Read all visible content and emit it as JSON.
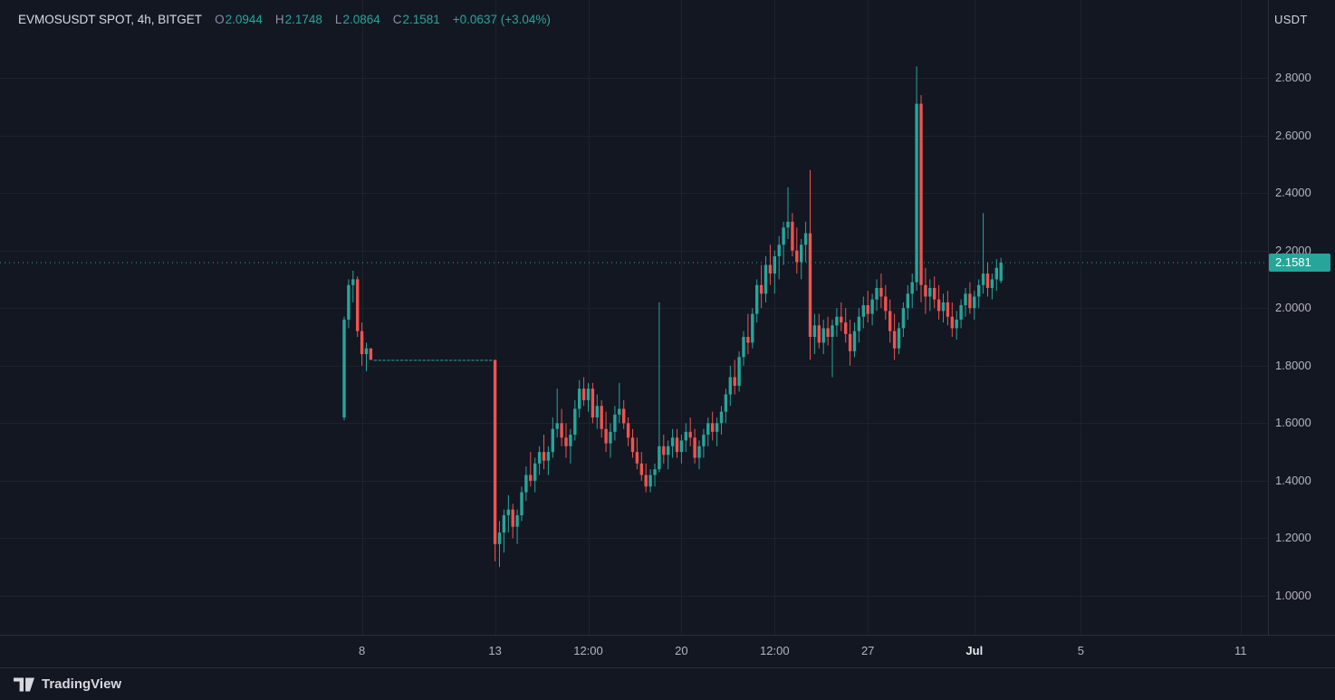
{
  "colors": {
    "background": "#131722",
    "grid": "#1e222d",
    "up": "#26a69a",
    "down": "#ef5350",
    "text_primary": "#d1d4dc",
    "text_secondary": "#b2b5be",
    "text_muted": "#8b8fa0",
    "axis_border": "#2a2e39",
    "badge_bg": "#26a69a",
    "badge_text": "#ffffff"
  },
  "legend": {
    "symbol_title": "EVMOSUSDT SPOT, 4h, BITGET",
    "ohlc": [
      {
        "label": "O",
        "value": "2.0944"
      },
      {
        "label": "H",
        "value": "2.1748"
      },
      {
        "label": "L",
        "value": "2.0864"
      },
      {
        "label": "C",
        "value": "2.1581"
      }
    ],
    "change": "+0.0637 (+3.04%)"
  },
  "price_axis": {
    "unit": "USDT"
  },
  "footer": {
    "brand": "TradingView"
  },
  "chart_data": {
    "type": "candlestick",
    "title": "EVMOSUSDT SPOT, 4h, BITGET",
    "symbol": "EVMOSUSDT",
    "market": "SPOT",
    "interval": "4h",
    "exchange": "BITGET",
    "unit": "USDT",
    "legend_ohlc": {
      "open": 2.0944,
      "high": 2.1748,
      "low": 2.0864,
      "close": 2.1581,
      "change_abs": 0.0637,
      "change_pct": 3.04
    },
    "ylim": [
      0.93,
      2.93
    ],
    "grid": true,
    "y_ticks": [
      {
        "value": 2.8,
        "label": "2.8000"
      },
      {
        "value": 2.6,
        "label": "2.6000"
      },
      {
        "value": 2.4,
        "label": "2.4000"
      },
      {
        "value": 2.2,
        "label": "2.2000"
      },
      {
        "value": 2.0,
        "label": "2.0000"
      },
      {
        "value": 1.8,
        "label": "1.8000"
      },
      {
        "value": 1.6,
        "label": "1.6000"
      },
      {
        "value": 1.4,
        "label": "1.4000"
      },
      {
        "value": 1.2,
        "label": "1.2000"
      },
      {
        "value": 1.0,
        "label": "1.0000"
      }
    ],
    "x_labels": [
      {
        "index": 4,
        "text": "8"
      },
      {
        "index": 34,
        "text": "13"
      },
      {
        "index": 55,
        "text": "12:00"
      },
      {
        "index": 76,
        "text": "20"
      },
      {
        "index": 97,
        "text": "12:00"
      },
      {
        "index": 118,
        "text": "27"
      },
      {
        "index": 142,
        "text": "Jul",
        "strong": true
      },
      {
        "index": 166,
        "text": "5"
      },
      {
        "index": 202,
        "text": "11"
      }
    ],
    "last_price": {
      "value": 2.1581,
      "label": "2.1581"
    },
    "flat_halt_period": {
      "from_index": 7,
      "to_index": 33,
      "price": 1.82
    },
    "candles_ohlc": [
      [
        1.62,
        1.97,
        1.61,
        1.96
      ],
      [
        1.96,
        2.1,
        1.93,
        2.08
      ],
      [
        2.08,
        2.13,
        2.02,
        2.1
      ],
      [
        2.1,
        2.11,
        1.9,
        1.92
      ],
      [
        1.92,
        1.95,
        1.8,
        1.84
      ],
      [
        1.84,
        1.88,
        1.78,
        1.86
      ],
      [
        1.86,
        1.86,
        1.82,
        1.82
      ],
      [
        1.82,
        1.82,
        1.82,
        1.82
      ],
      [
        1.82,
        1.82,
        1.82,
        1.82
      ],
      [
        1.82,
        1.82,
        1.82,
        1.82
      ],
      [
        1.82,
        1.82,
        1.82,
        1.82
      ],
      [
        1.82,
        1.82,
        1.82,
        1.82
      ],
      [
        1.82,
        1.82,
        1.82,
        1.82
      ],
      [
        1.82,
        1.82,
        1.82,
        1.82
      ],
      [
        1.82,
        1.82,
        1.82,
        1.82
      ],
      [
        1.82,
        1.82,
        1.82,
        1.82
      ],
      [
        1.82,
        1.82,
        1.82,
        1.82
      ],
      [
        1.82,
        1.82,
        1.82,
        1.82
      ],
      [
        1.82,
        1.82,
        1.82,
        1.82
      ],
      [
        1.82,
        1.82,
        1.82,
        1.82
      ],
      [
        1.82,
        1.82,
        1.82,
        1.82
      ],
      [
        1.82,
        1.82,
        1.82,
        1.82
      ],
      [
        1.82,
        1.82,
        1.82,
        1.82
      ],
      [
        1.82,
        1.82,
        1.82,
        1.82
      ],
      [
        1.82,
        1.82,
        1.82,
        1.82
      ],
      [
        1.82,
        1.82,
        1.82,
        1.82
      ],
      [
        1.82,
        1.82,
        1.82,
        1.82
      ],
      [
        1.82,
        1.82,
        1.82,
        1.82
      ],
      [
        1.82,
        1.82,
        1.82,
        1.82
      ],
      [
        1.82,
        1.82,
        1.82,
        1.82
      ],
      [
        1.82,
        1.82,
        1.82,
        1.82
      ],
      [
        1.82,
        1.82,
        1.82,
        1.82
      ],
      [
        1.82,
        1.82,
        1.82,
        1.82
      ],
      [
        1.82,
        1.82,
        1.82,
        1.82
      ],
      [
        1.82,
        1.82,
        1.12,
        1.18
      ],
      [
        1.18,
        1.26,
        1.1,
        1.22
      ],
      [
        1.22,
        1.3,
        1.15,
        1.28
      ],
      [
        1.28,
        1.35,
        1.22,
        1.3
      ],
      [
        1.3,
        1.32,
        1.2,
        1.24
      ],
      [
        1.24,
        1.3,
        1.18,
        1.28
      ],
      [
        1.28,
        1.38,
        1.26,
        1.36
      ],
      [
        1.36,
        1.45,
        1.33,
        1.42
      ],
      [
        1.42,
        1.5,
        1.38,
        1.4
      ],
      [
        1.4,
        1.48,
        1.36,
        1.46
      ],
      [
        1.46,
        1.52,
        1.42,
        1.5
      ],
      [
        1.5,
        1.56,
        1.44,
        1.47
      ],
      [
        1.47,
        1.52,
        1.42,
        1.5
      ],
      [
        1.5,
        1.62,
        1.48,
        1.58
      ],
      [
        1.58,
        1.72,
        1.55,
        1.6
      ],
      [
        1.6,
        1.65,
        1.52,
        1.55
      ],
      [
        1.55,
        1.6,
        1.48,
        1.52
      ],
      [
        1.52,
        1.58,
        1.46,
        1.56
      ],
      [
        1.56,
        1.68,
        1.54,
        1.65
      ],
      [
        1.65,
        1.75,
        1.62,
        1.72
      ],
      [
        1.72,
        1.76,
        1.66,
        1.68
      ],
      [
        1.68,
        1.74,
        1.64,
        1.72
      ],
      [
        1.72,
        1.74,
        1.6,
        1.62
      ],
      [
        1.62,
        1.7,
        1.58,
        1.66
      ],
      [
        1.66,
        1.68,
        1.55,
        1.58
      ],
      [
        1.58,
        1.64,
        1.5,
        1.53
      ],
      [
        1.53,
        1.6,
        1.48,
        1.57
      ],
      [
        1.57,
        1.66,
        1.54,
        1.63
      ],
      [
        1.63,
        1.74,
        1.6,
        1.65
      ],
      [
        1.65,
        1.68,
        1.58,
        1.6
      ],
      [
        1.6,
        1.62,
        1.52,
        1.55
      ],
      [
        1.55,
        1.58,
        1.48,
        1.5
      ],
      [
        1.5,
        1.55,
        1.44,
        1.46
      ],
      [
        1.46,
        1.5,
        1.4,
        1.42
      ],
      [
        1.42,
        1.46,
        1.36,
        1.38
      ],
      [
        1.38,
        1.44,
        1.36,
        1.42
      ],
      [
        1.42,
        1.46,
        1.38,
        1.44
      ],
      [
        1.44,
        2.02,
        1.43,
        1.52
      ],
      [
        1.52,
        1.56,
        1.46,
        1.49
      ],
      [
        1.49,
        1.54,
        1.44,
        1.52
      ],
      [
        1.52,
        1.58,
        1.48,
        1.55
      ],
      [
        1.55,
        1.58,
        1.48,
        1.5
      ],
      [
        1.5,
        1.56,
        1.46,
        1.54
      ],
      [
        1.54,
        1.6,
        1.5,
        1.57
      ],
      [
        1.57,
        1.62,
        1.52,
        1.55
      ],
      [
        1.55,
        1.58,
        1.46,
        1.48
      ],
      [
        1.48,
        1.54,
        1.44,
        1.52
      ],
      [
        1.52,
        1.58,
        1.48,
        1.56
      ],
      [
        1.56,
        1.62,
        1.52,
        1.6
      ],
      [
        1.6,
        1.64,
        1.54,
        1.57
      ],
      [
        1.57,
        1.62,
        1.52,
        1.6
      ],
      [
        1.6,
        1.66,
        1.56,
        1.64
      ],
      [
        1.64,
        1.72,
        1.6,
        1.7
      ],
      [
        1.7,
        1.8,
        1.66,
        1.76
      ],
      [
        1.76,
        1.82,
        1.7,
        1.73
      ],
      [
        1.73,
        1.85,
        1.71,
        1.83
      ],
      [
        1.83,
        1.92,
        1.8,
        1.9
      ],
      [
        1.9,
        1.98,
        1.84,
        1.88
      ],
      [
        1.88,
        2.0,
        1.86,
        1.98
      ],
      [
        1.98,
        2.1,
        1.95,
        2.08
      ],
      [
        2.08,
        2.15,
        2.0,
        2.05
      ],
      [
        2.05,
        2.18,
        2.02,
        2.15
      ],
      [
        2.15,
        2.22,
        2.08,
        2.12
      ],
      [
        2.12,
        2.2,
        2.05,
        2.18
      ],
      [
        2.18,
        2.25,
        2.1,
        2.22
      ],
      [
        2.22,
        2.3,
        2.15,
        2.28
      ],
      [
        2.28,
        2.42,
        2.24,
        2.3
      ],
      [
        2.3,
        2.33,
        2.18,
        2.2
      ],
      [
        2.2,
        2.28,
        2.12,
        2.16
      ],
      [
        2.16,
        2.24,
        2.1,
        2.22
      ],
      [
        2.22,
        2.3,
        2.16,
        2.26
      ],
      [
        2.26,
        2.48,
        1.82,
        1.9
      ],
      [
        1.9,
        1.98,
        1.84,
        1.94
      ],
      [
        1.94,
        1.98,
        1.86,
        1.88
      ],
      [
        1.88,
        1.96,
        1.84,
        1.93
      ],
      [
        1.93,
        1.97,
        1.87,
        1.9
      ],
      [
        1.9,
        1.96,
        1.76,
        1.94
      ],
      [
        1.94,
        2.0,
        1.9,
        1.97
      ],
      [
        1.97,
        2.02,
        1.92,
        1.95
      ],
      [
        1.95,
        2.0,
        1.88,
        1.91
      ],
      [
        1.91,
        1.96,
        1.8,
        1.85
      ],
      [
        1.85,
        1.95,
        1.83,
        1.92
      ],
      [
        1.92,
        2.0,
        1.88,
        1.97
      ],
      [
        1.97,
        2.04,
        1.93,
        2.01
      ],
      [
        2.01,
        2.06,
        1.95,
        1.98
      ],
      [
        1.98,
        2.05,
        1.94,
        2.03
      ],
      [
        2.03,
        2.1,
        1.99,
        2.07
      ],
      [
        2.07,
        2.12,
        2.0,
        2.04
      ],
      [
        2.04,
        2.08,
        1.96,
        1.99
      ],
      [
        1.99,
        2.03,
        1.88,
        1.92
      ],
      [
        1.92,
        1.98,
        1.82,
        1.86
      ],
      [
        1.86,
        1.95,
        1.84,
        1.93
      ],
      [
        1.93,
        2.02,
        1.9,
        2.0
      ],
      [
        2.0,
        2.08,
        1.96,
        2.05
      ],
      [
        2.05,
        2.12,
        2.0,
        2.09
      ],
      [
        2.09,
        2.84,
        2.06,
        2.71
      ],
      [
        2.71,
        2.74,
        2.02,
        2.08
      ],
      [
        2.08,
        2.14,
        1.98,
        2.04
      ],
      [
        2.04,
        2.1,
        1.99,
        2.07
      ],
      [
        2.07,
        2.11,
        2.0,
        2.03
      ],
      [
        2.03,
        2.08,
        1.96,
        1.99
      ],
      [
        1.99,
        2.05,
        1.95,
        2.02
      ],
      [
        2.02,
        2.06,
        1.94,
        1.97
      ],
      [
        1.97,
        2.02,
        1.9,
        1.93
      ],
      [
        1.93,
        1.99,
        1.89,
        1.96
      ],
      [
        1.96,
        2.03,
        1.93,
        2.01
      ],
      [
        2.01,
        2.07,
        1.97,
        2.05
      ],
      [
        2.05,
        2.09,
        1.98,
        2.0
      ],
      [
        2.0,
        2.06,
        1.96,
        2.04
      ],
      [
        2.04,
        2.1,
        2.0,
        2.08
      ],
      [
        2.08,
        2.33,
        2.05,
        2.12
      ],
      [
        2.12,
        2.16,
        2.04,
        2.07
      ],
      [
        2.07,
        2.12,
        2.03,
        2.1
      ],
      [
        2.1,
        2.17,
        2.06,
        2.14
      ],
      [
        2.0944,
        2.1748,
        2.0864,
        2.1581
      ]
    ]
  }
}
